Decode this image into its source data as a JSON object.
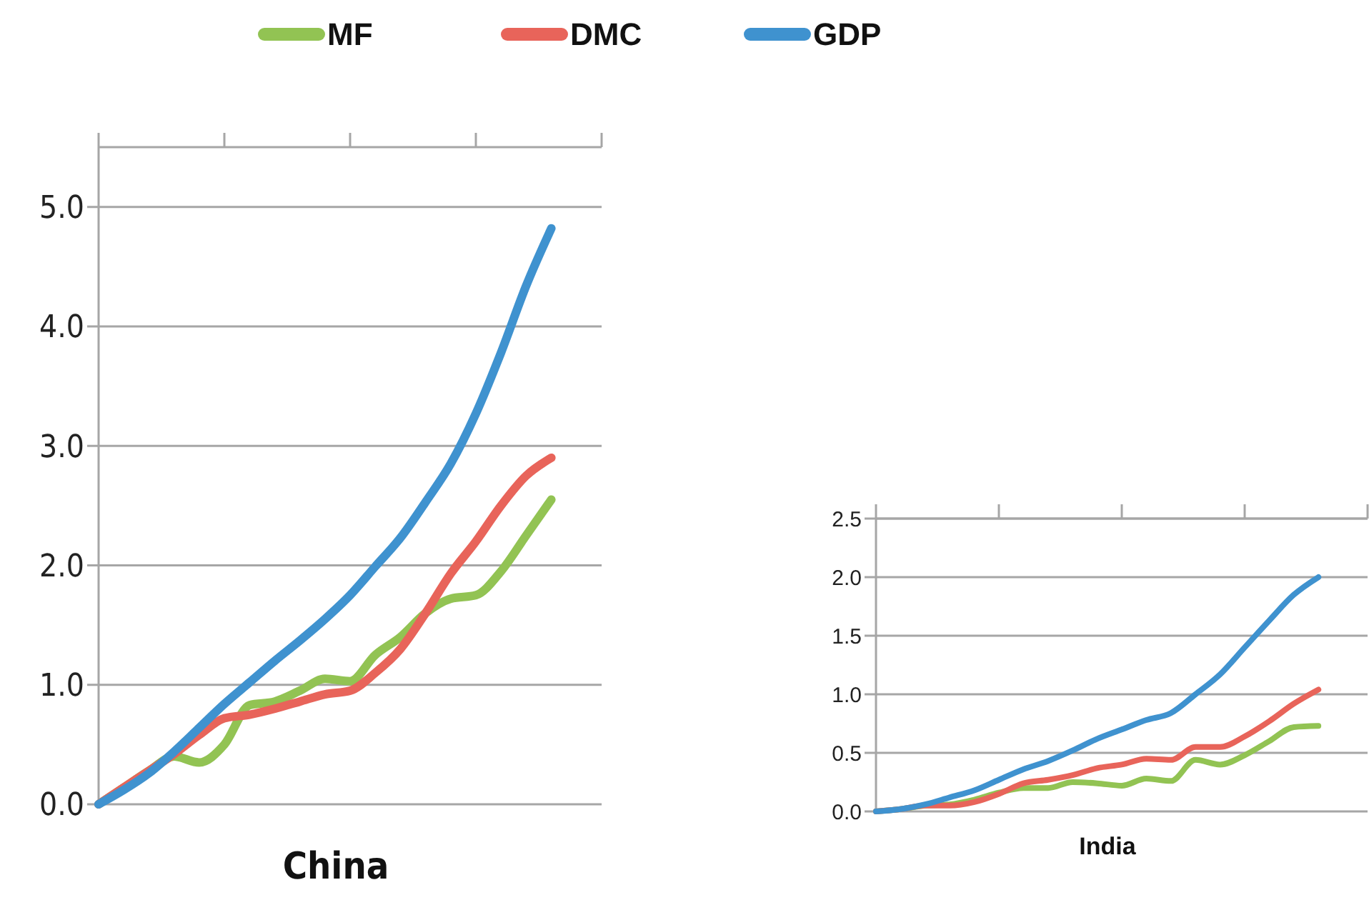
{
  "chart_data": [
    {
      "type": "line",
      "xlabel": "China",
      "categories": [
        null,
        null,
        null,
        null,
        null,
        null,
        null,
        null,
        null,
        null,
        null,
        null,
        null,
        null,
        null,
        null,
        null,
        null,
        null,
        null,
        null
      ],
      "ylim": [
        0,
        5.5
      ],
      "yticks": [
        {
          "value": 0,
          "label": "0.0"
        },
        {
          "value": 1,
          "label": "1.0"
        },
        {
          "value": 2,
          "label": "2.0"
        },
        {
          "value": 3,
          "label": "3.0"
        },
        {
          "value": 4,
          "label": "4.0"
        },
        {
          "value": 5,
          "label": "5.0"
        }
      ],
      "grid": "y",
      "tick_labels": "y",
      "legend": "top",
      "marker": "none",
      "line_style": "solid",
      "series": [
        {
          "name": "MF",
          "color": "#92c353",
          "values": [
            0,
            0.14,
            0.28,
            0.4,
            0.35,
            0.5,
            0.83,
            0.86,
            0.95,
            1.05,
            1.03,
            1.25,
            1.4,
            1.6,
            1.72,
            1.75,
            1.95,
            2.25,
            2.55,
            null,
            null
          ]
        },
        {
          "name": "DMC",
          "color": "#e8645a",
          "values": [
            0,
            0.14,
            0.28,
            0.42,
            0.58,
            0.72,
            0.75,
            0.8,
            0.86,
            0.92,
            0.95,
            1.1,
            1.3,
            1.6,
            1.93,
            2.2,
            2.5,
            2.75,
            2.9,
            null,
            null
          ]
        },
        {
          "name": "GDP",
          "color": "#3f92cf",
          "values": [
            0,
            0.12,
            0.26,
            0.44,
            0.64,
            0.84,
            1.02,
            1.2,
            1.37,
            1.55,
            1.75,
            1.99,
            2.23,
            2.53,
            2.85,
            3.27,
            3.78,
            4.34,
            4.82,
            null,
            null
          ]
        }
      ]
    },
    {
      "type": "line",
      "xlabel": "India",
      "categories": [
        null,
        null,
        null,
        null,
        null,
        null,
        null,
        null,
        null,
        null,
        null,
        null,
        null,
        null,
        null,
        null,
        null,
        null,
        null,
        null,
        null
      ],
      "ylim": [
        0,
        2.5
      ],
      "yticks": [
        {
          "value": 0,
          "label": "0.0"
        },
        {
          "value": 0.5,
          "label": "0.5"
        },
        {
          "value": 1,
          "label": "1.0"
        },
        {
          "value": 1.5,
          "label": "1.5"
        },
        {
          "value": 2,
          "label": "2.0"
        },
        {
          "value": 2.5,
          "label": "2.5"
        }
      ],
      "grid": "y",
      "tick_labels": "y",
      "marker": "none",
      "line_style": "solid",
      "series": [
        {
          "color": "#92c353",
          "values": [
            0,
            0.02,
            0.05,
            0.06,
            0.1,
            0.16,
            0.2,
            0.2,
            0.25,
            0.24,
            0.22,
            0.28,
            0.26,
            0.44,
            0.4,
            0.48,
            0.6,
            0.72,
            0.73,
            null,
            null
          ]
        },
        {
          "color": "#e8645a",
          "values": [
            0,
            0.02,
            0.05,
            0.05,
            0.08,
            0.15,
            0.24,
            0.27,
            0.31,
            0.37,
            0.4,
            0.45,
            0.44,
            0.55,
            0.55,
            0.64,
            0.77,
            0.92,
            1.04,
            null,
            null
          ]
        },
        {
          "color": "#3f92cf",
          "values": [
            0,
            0.02,
            0.06,
            0.12,
            0.18,
            0.27,
            0.36,
            0.43,
            0.52,
            0.62,
            0.7,
            0.78,
            0.84,
            1.0,
            1.17,
            1.4,
            1.63,
            1.85,
            2.0,
            null,
            null
          ]
        }
      ]
    }
  ]
}
